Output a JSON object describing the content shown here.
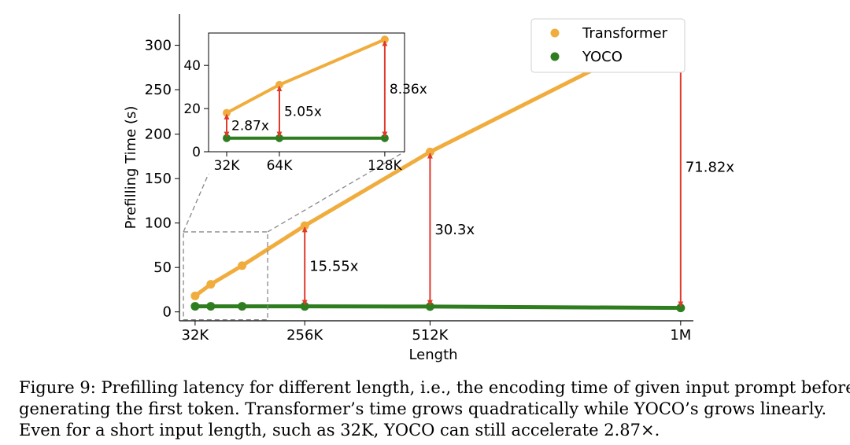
{
  "chart_data": [
    {
      "type": "line",
      "xlabel": "Length",
      "ylabel": "Prefilling Time (s)",
      "x_tick_labels": [
        "32K",
        "256K",
        "512K",
        "1M"
      ],
      "x_tick_values": [
        32,
        256,
        512,
        1024
      ],
      "y_ticks": [
        0,
        50,
        100,
        150,
        200,
        250,
        300
      ],
      "xlim": [
        0,
        1050
      ],
      "ylim": [
        -10,
        335
      ],
      "legend_position": "top-right",
      "series": [
        {
          "name": "Transformer",
          "color": "#f0ad3e",
          "x": [
            32,
            64,
            128,
            256,
            512,
            1024
          ],
          "y": [
            18,
            31,
            52,
            97,
            180,
            322
          ]
        },
        {
          "name": "YOCO",
          "color": "#2e7d1f",
          "x": [
            32,
            64,
            128,
            256,
            512,
            1024
          ],
          "y": [
            6.3,
            6.3,
            6.3,
            6.2,
            6.0,
            4.5
          ]
        }
      ],
      "annotations": [
        {
          "x": 256,
          "label": "15.55x"
        },
        {
          "x": 512,
          "label": "30.3x"
        },
        {
          "x": 1024,
          "label": "71.82x"
        }
      ]
    },
    {
      "type": "line",
      "x_tick_labels": [
        "32K",
        "64K",
        "128K"
      ],
      "x_tick_values": [
        32,
        64,
        128
      ],
      "y_ticks": [
        0,
        20,
        40
      ],
      "xlim": [
        21,
        140
      ],
      "ylim": [
        0,
        55
      ],
      "series": [
        {
          "name": "Transformer",
          "color": "#f0ad3e",
          "x": [
            32,
            64,
            128
          ],
          "y": [
            18,
            31,
            52
          ]
        },
        {
          "name": "YOCO",
          "color": "#2e7d1f",
          "x": [
            32,
            64,
            128
          ],
          "y": [
            6.3,
            6.3,
            6.3
          ]
        }
      ],
      "annotations": [
        {
          "x": 32,
          "label": "2.87x"
        },
        {
          "x": 64,
          "label": "5.05x"
        },
        {
          "x": 128,
          "label": "8.36x"
        }
      ]
    }
  ],
  "caption": {
    "line1": "Figure 9: Prefilling latency for different length, i.e., the encoding time of given input prompt before",
    "line2": "generating the first token. Transformer’s time grows quadratically while YOCO’s grows linearly.",
    "line3": "Even for a short input length, such as 32K, YOCO can still accelerate 2.87×."
  },
  "colors": {
    "arrow": "#e0392b",
    "zoom_box": "#888888"
  }
}
